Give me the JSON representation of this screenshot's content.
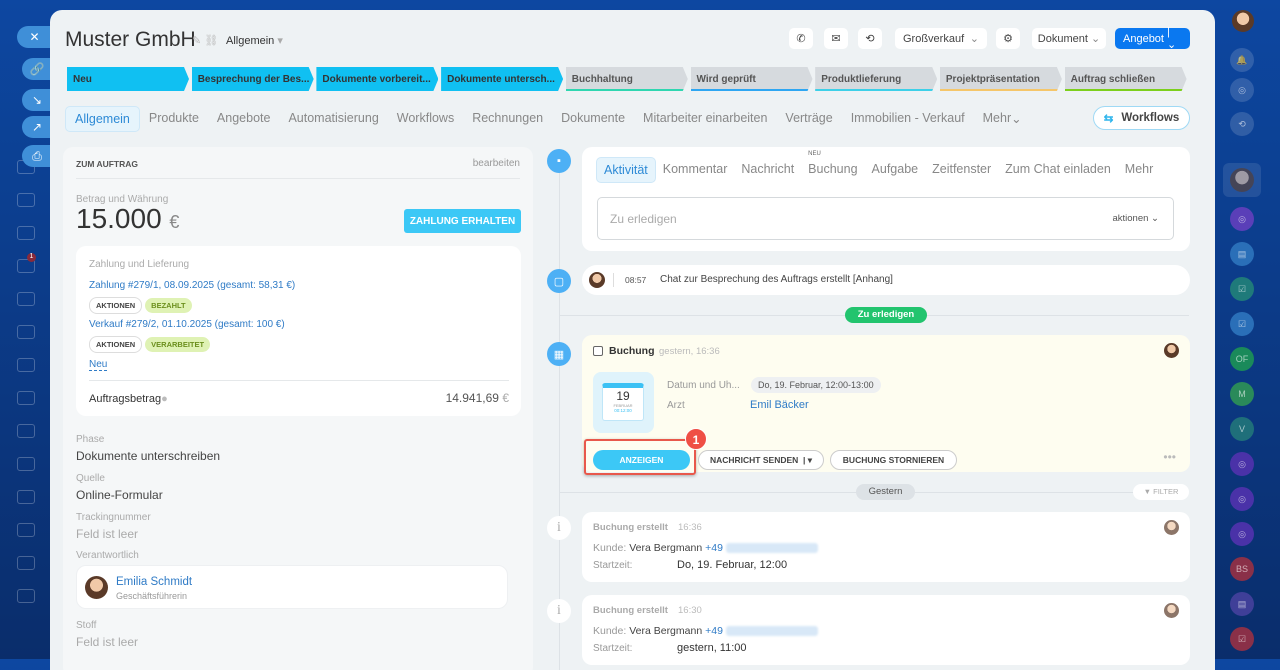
{
  "header": {
    "title": "Muster GmbH",
    "category": "Allgemein",
    "pipeline": "Großverkauf",
    "document_label": "Dokument",
    "offer_label": "Angebot"
  },
  "stages": [
    {
      "label": "Neu",
      "state": "done"
    },
    {
      "label": "Besprechung der Bes...",
      "state": "done"
    },
    {
      "label": "Dokumente vorbereit...",
      "state": "done"
    },
    {
      "label": "Dokumente untersch...",
      "state": "done"
    },
    {
      "label": "Buchhaltung",
      "state": "todo",
      "color": "#2fd6b0"
    },
    {
      "label": "Wird geprüft",
      "state": "todo",
      "color": "#2ea6f2"
    },
    {
      "label": "Produktlieferung",
      "state": "todo",
      "color": "#3dd0e8"
    },
    {
      "label": "Projektpräsentation",
      "state": "todo",
      "color": "#f5c66a"
    },
    {
      "label": "Auftrag schließen",
      "state": "todo",
      "color": "#7ccf1c"
    }
  ],
  "tabs": [
    "Allgemein",
    "Produkte",
    "Angebote",
    "Automatisierung",
    "Workflows",
    "Rechnungen",
    "Dokumente",
    "Mitarbeiter einarbeiten",
    "Verträge",
    "Immobilien - Verkauf",
    "Mehr"
  ],
  "workflows_button": "Workflows",
  "left": {
    "section_title": "ZUM AUFTRAG",
    "edit": "bearbeiten",
    "amount_label": "Betrag und Währung",
    "amount": "15.000",
    "currency": "€",
    "pay_button": "ZAHLUNG ERHALTEN",
    "payment": {
      "title": "Zahlung und Lieferung",
      "items": [
        {
          "link": "Zahlung #279/1, 08.09.2025 (gesamt: 58,31 €)",
          "actions": "AKTIONEN",
          "status": "BEZAHLT"
        },
        {
          "link": "Verkauf #279/2, 01.10.2025 (gesamt: 100 €)",
          "actions": "AKTIONEN",
          "status": "VERARBEITET"
        }
      ],
      "new": "Neu",
      "total_label": "Auftragsbetrag",
      "total": "14.941,69",
      "total_currency": "€"
    },
    "fields": [
      {
        "label": "Phase",
        "value": "Dokumente unterschreiben"
      },
      {
        "label": "Quelle",
        "value": "Online-Formular"
      },
      {
        "label": "Trackingnummer",
        "value": "Feld ist leer"
      }
    ],
    "responsible_label": "Verantwortlich",
    "responsible_name": "Emilia Schmidt",
    "responsible_role": "Geschäftsführerin",
    "stoff_label": "Stoff",
    "stoff_value": "Feld ist leer"
  },
  "activity": {
    "tabs": [
      "Aktivität",
      "Kommentar",
      "Nachricht",
      "Buchung",
      "Aufgabe",
      "Zeitfenster",
      "Zum Chat einladen",
      "Mehr"
    ],
    "new_badge": "NEU",
    "placeholder": "Zu erledigen",
    "actions": "aktionen"
  },
  "timeline": {
    "chat": {
      "time": "08:57",
      "text": "Chat zur Besprechung des Auftrags erstellt [Anhang]"
    },
    "todo_badge": "Zu erledigen",
    "booking": {
      "title": "Buchung",
      "time": "gestern, 16:36",
      "date_label": "Datum und Uh...",
      "date_value": "Do, 19. Februar, 12:00-13:00",
      "doctor_label": "Arzt",
      "doctor": "Emil Bäcker",
      "cal_day": "19",
      "cal_month": "FEBRUAR",
      "cal_time": "00:12:00",
      "show": "ANZEIGEN",
      "send": "NACHRICHT SENDEN",
      "cancel": "BUCHUNG STORNIEREN",
      "step": "1"
    },
    "yesterday": "Gestern",
    "filter": "FILTER",
    "events": [
      {
        "title": "Buchung erstellt",
        "time": "16:36",
        "customer_label": "Kunde:",
        "customer": "Vera Bergmann",
        "phone": "+49",
        "start_label": "Startzeit:",
        "start": "Do, 19. Februar, 12:00"
      },
      {
        "title": "Buchung erstellt",
        "time": "16:30",
        "customer_label": "Kunde:",
        "customer": "Vera Bergmann",
        "phone": "+49",
        "start_label": "Startzeit:",
        "start": "gestern, 11:00"
      }
    ]
  },
  "rightbar": [
    "OF",
    "M",
    "V",
    "BS"
  ],
  "leftbar": {
    "badge": "1"
  }
}
